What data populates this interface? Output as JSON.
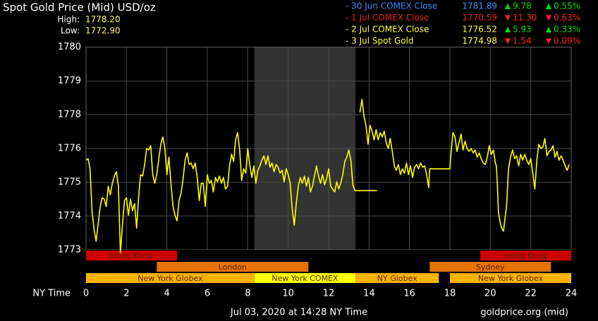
{
  "chart_data": {
    "type": "line",
    "title": "Spot Gold Price (Mid) USD/oz",
    "stats": [
      {
        "label": "High:",
        "value": "1778.20"
      },
      {
        "label": "Low:",
        "value": "1772.90"
      }
    ],
    "legend": [
      {
        "name": "- 30 Jun COMEX Close",
        "color": "#3c8cff",
        "price": "1781.89",
        "change": "9.78",
        "change_pct": "0.55%",
        "direction": "up"
      },
      {
        "name": "- 1 Jul COMEX Close",
        "color": "#e82020",
        "price": "1770.59",
        "change": "11.30",
        "change_pct": "0.63%",
        "direction": "down"
      },
      {
        "name": "- 2 Jul COMEX Close",
        "color": "#ffff40",
        "price": "1776.52",
        "change": "5.93",
        "change_pct": "0.33%",
        "direction": "up"
      },
      {
        "name": "- 3 Jul Spot Gold",
        "color": "#ffff40",
        "price": "1774.98",
        "change": "1.54",
        "change_pct": "0.09%",
        "direction": "down"
      }
    ],
    "xlabel": "NY Time",
    "footer": "Jul 03, 2020 at 14:28 NY Time",
    "source": "goldprice.org (mid)",
    "color": "#ffff00",
    "xlim": [
      0,
      24
    ],
    "xticks": [
      0,
      2,
      4,
      6,
      8,
      10,
      12,
      14,
      16,
      18,
      20,
      22,
      24
    ],
    "ylim": [
      1773,
      1780
    ],
    "yticks": [
      {
        "value": 1780,
        "label": "1780"
      },
      {
        "value": 1778.83,
        "label": "1779"
      },
      {
        "value": 1777.67,
        "label": "1778"
      },
      {
        "value": 1776.5,
        "label": "1776"
      },
      {
        "value": 1775.33,
        "label": "1775"
      },
      {
        "value": 1774.17,
        "label": "1774"
      },
      {
        "value": 1773,
        "label": "1773"
      }
    ],
    "grid": true,
    "shaded_range": [
      8.33,
      13.33
    ],
    "sessions": [
      [
        {
          "name": "Hong Kong",
          "start": 0,
          "end": 4.5,
          "color": "#cc0000"
        },
        {
          "name": "Hong Kong",
          "start": 19.5,
          "end": 24,
          "color": "#cc0000"
        }
      ],
      [
        {
          "name": "London",
          "start": 3.5,
          "end": 11,
          "color": "#e67300"
        },
        {
          "name": "Sydney",
          "start": 17,
          "end": 23,
          "color": "#e67300"
        }
      ],
      [
        {
          "name": "New York Globex",
          "start": 0,
          "end": 8.33,
          "color": "#ffb300"
        },
        {
          "name": "New York COMEX",
          "start": 8.33,
          "end": 13.33,
          "color": "#ffff00"
        },
        {
          "name": "NY Globex",
          "start": 13.33,
          "end": 17.45,
          "color": "#ffb300"
        },
        {
          "name": "New York Globex",
          "start": 18,
          "end": 24,
          "color": "#ffb300"
        }
      ]
    ],
    "x": [
      0,
      0.1,
      0.2,
      0.3,
      0.4,
      0.5,
      0.6,
      0.7,
      0.8,
      0.9,
      1,
      1.1,
      1.2,
      1.3,
      1.4,
      1.5,
      1.6,
      1.7,
      1.8,
      1.9,
      2,
      2.1,
      2.2,
      2.3,
      2.4,
      2.5,
      2.6,
      2.7,
      2.8,
      2.9,
      3,
      3.1,
      3.2,
      3.3,
      3.4,
      3.5,
      3.6,
      3.7,
      3.8,
      3.9,
      4,
      4.1,
      4.2,
      4.3,
      4.4,
      4.5,
      4.6,
      4.7,
      4.8,
      4.9,
      5,
      5.1,
      5.2,
      5.3,
      5.4,
      5.5,
      5.6,
      5.7,
      5.8,
      5.9,
      6,
      6.1,
      6.2,
      6.3,
      6.4,
      6.5,
      6.6,
      6.7,
      6.8,
      6.9,
      7,
      7.1,
      7.2,
      7.3,
      7.4,
      7.5,
      7.6,
      7.7,
      7.8,
      7.9,
      8,
      8.1,
      8.2,
      8.3,
      8.4,
      8.5,
      8.6,
      8.7,
      8.8,
      8.9,
      9,
      9.1,
      9.2,
      9.3,
      9.4,
      9.5,
      9.6,
      9.7,
      9.8,
      9.9,
      10,
      10.1,
      10.2,
      10.3,
      10.4,
      10.5,
      10.6,
      10.7,
      10.8,
      10.9,
      11,
      11.1,
      11.2,
      11.3,
      11.4,
      11.5,
      11.6,
      11.7,
      11.8,
      11.9,
      12,
      12.1,
      12.2,
      12.3,
      12.4,
      12.5,
      12.6,
      12.7,
      12.8,
      12.9,
      13,
      13.1,
      13.2,
      13.3,
      14.4,
      null,
      13.55,
      13.65,
      13.75,
      13.85,
      13.95,
      14.05,
      14.15,
      14.25,
      14.35,
      14.45,
      14.55,
      14.65,
      14.75,
      14.85,
      14.95,
      15.05,
      15.15,
      15.25,
      15.35,
      15.45,
      15.55,
      15.65,
      15.75,
      15.85,
      15.95,
      16.05,
      16.15,
      16.25,
      16.35,
      16.45,
      16.55,
      16.65,
      16.75,
      16.85,
      16.95,
      17,
      18,
      18.05,
      18.15,
      18.25,
      18.35,
      18.45,
      18.55,
      18.65,
      18.75,
      18.85,
      18.95,
      19.05,
      19.15,
      19.25,
      19.35,
      19.45,
      19.55,
      19.65,
      19.75,
      19.85,
      19.95,
      20.05,
      20.15,
      20.25,
      20.3,
      20.35,
      20.4,
      20.5,
      20.6,
      20.65,
      20.7,
      20.8,
      20.9,
      21,
      21.1,
      21.2,
      21.3,
      21.4,
      21.5,
      21.6,
      21.7,
      21.8,
      21.9,
      22,
      22.1,
      22.2,
      22.3,
      22.4,
      22.5,
      22.6,
      22.7,
      22.8,
      22.9,
      23,
      23.1,
      23.2,
      23.3,
      23.4,
      23.5,
      23.6,
      23.7,
      23.8,
      23.9
    ],
    "values": [
      1776.1,
      1776.15,
      1775.8,
      1774.3,
      1773.7,
      1773.3,
      1773.9,
      1774.5,
      1774.8,
      1774.75,
      1774.5,
      1775.2,
      1774.9,
      1775.3,
      1775.55,
      1775.7,
      1775.2,
      1772.9,
      1773.85,
      1774.7,
      1774.8,
      1774.2,
      1774.75,
      1774.35,
      1774.6,
      1773.75,
      1774.8,
      1775.6,
      1775.55,
      1775.95,
      1776.5,
      1776.45,
      1776.6,
      1775.6,
      1775.3,
      1775.6,
      1776.15,
      1776.65,
      1776.9,
      1776.5,
      1775.6,
      1776.2,
      1775.3,
      1774.5,
      1774.2,
      1774,
      1774.7,
      1774.95,
      1775.45,
      1776.1,
      1776.35,
      1775.95,
      1776,
      1775.8,
      1776,
      1775.5,
      1774.7,
      1775.3,
      1775.3,
      1774.5,
      1775.6,
      1775.3,
      1775.4,
      1775,
      1775.5,
      1775.35,
      1775.55,
      1775.3,
      1775.5,
      1775.1,
      1775.2,
      1775.9,
      1776.3,
      1776.05,
      1776.8,
      1777.05,
      1776.45,
      1775.4,
      1775.8,
      1775.65,
      1776.5,
      1775.95,
      1775.5,
      1775.9,
      1775.3,
      1775.75,
      1775.9,
      1776.1,
      1776.25,
      1775.95,
      1776.25,
      1775.85,
      1776,
      1775.7,
      1775.95,
      1775.85,
      1775.65,
      1775.75,
      1775.35,
      1775.8,
      1775.6,
      1775.3,
      1774.4,
      1773.85,
      1774.6,
      1775.2,
      1775.5,
      1775.3,
      1775.55,
      1775.2,
      1775.5,
      1775,
      1775.2,
      1775.55,
      1775.9,
      1775.55,
      1775.3,
      1775.6,
      1775.25,
      1775.45,
      1775.8,
      1775.2,
      1775.1,
      1775,
      1775.35,
      1775.1,
      1775.3,
      1775.6,
      1776.05,
      1776.2,
      1776.45,
      1776.1,
      1775.25,
      1775.05,
      1775.05,
      null,
      1777.75,
      1778.2,
      1777.6,
      1777.3,
      1776.65,
      1777.3,
      1777.1,
      1776.8,
      1777.15,
      1776.8,
      1777.05,
      1776.9,
      1777.1,
      1776.7,
      1776.5,
      1776.85,
      1776.4,
      1775.9,
      1775.75,
      1775.95,
      1775.6,
      1775.8,
      1775.65,
      1776,
      1775.6,
      1775.9,
      1775.5,
      1775.85,
      1775.95,
      1775.8,
      1776,
      1775.85,
      1775.9,
      1775.6,
      1775.15,
      1775.8,
      1775.8,
      1776.3,
      1777.05,
      1776.9,
      1776.4,
      1776.7,
      1777,
      1776.45,
      1776.75,
      1776.5,
      1776.4,
      1776.5,
      1776.35,
      1776.45,
      1776.2,
      1776.35,
      1776.15,
      1776,
      1775.95,
      1776.2,
      1776.6,
      1776.3,
      1776.45,
      1776,
      1775.9,
      1775.2,
      1774.3,
      1773.9,
      1773.7,
      1773.65,
      1773.95,
      1774.5,
      1775.8,
      1776.2,
      1776.45,
      1776.15,
      1776.25,
      1775.9,
      1776.3,
      1776.1,
      1776.3,
      1776.1,
      1775.95,
      1776.15,
      1775.65,
      1775.1,
      1776.1,
      1776.65,
      1776.5,
      1776.55,
      1776.85,
      1776.25,
      1776.4,
      1776.45,
      1776.6,
      1776.2,
      1776.4,
      1776.1,
      1776.25,
      1776.1,
      1775.9,
      1775.75,
      1775.95
    ]
  }
}
